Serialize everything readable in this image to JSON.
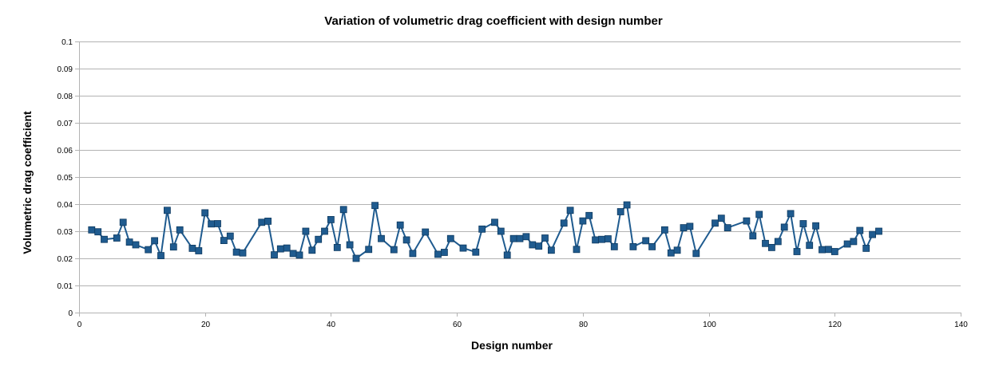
{
  "chart_data": {
    "type": "line",
    "title": "Variation of volumetric drag coefficient with design number",
    "xlabel": "Design number",
    "ylabel": "Volumetric drag coefficient",
    "xlim": [
      0,
      140
    ],
    "ylim": [
      0,
      0.1
    ],
    "x_ticks": [
      0,
      20,
      40,
      60,
      80,
      100,
      120,
      140
    ],
    "y_ticks": [
      0,
      0.01,
      0.02,
      0.03,
      0.04,
      0.05,
      0.06,
      0.07,
      0.08,
      0.09,
      0.1
    ],
    "x_tick_labels": [
      "0",
      "20",
      "40",
      "60",
      "80",
      "100",
      "120",
      "140"
    ],
    "y_tick_labels": [
      "0",
      "0.01",
      "0.02",
      "0.03",
      "0.04",
      "0.05",
      "0.06",
      "0.07",
      "0.08",
      "0.09",
      "0.1"
    ],
    "grid": "horizontal",
    "legend": "none",
    "series": [
      {
        "color": "#1f5b8f",
        "marker": "square",
        "points": [
          [
            2,
            0.0305
          ],
          [
            3,
            0.0298
          ],
          [
            4,
            0.027
          ],
          [
            6,
            0.0275
          ],
          [
            7,
            0.0333
          ],
          [
            8,
            0.026
          ],
          [
            9,
            0.025
          ],
          [
            11,
            0.0232
          ],
          [
            12,
            0.0265
          ],
          [
            13,
            0.021
          ],
          [
            14,
            0.0377
          ],
          [
            15,
            0.0242
          ],
          [
            16,
            0.0305
          ],
          [
            18,
            0.0237
          ],
          [
            19,
            0.0228
          ],
          [
            20,
            0.0368
          ],
          [
            21,
            0.0327
          ],
          [
            22,
            0.0328
          ],
          [
            23,
            0.0266
          ],
          [
            24,
            0.0282
          ],
          [
            25,
            0.0223
          ],
          [
            26,
            0.022
          ],
          [
            29,
            0.0333
          ],
          [
            30,
            0.0337
          ],
          [
            31,
            0.0213
          ],
          [
            32,
            0.0235
          ],
          [
            33,
            0.0238
          ],
          [
            34,
            0.0218
          ],
          [
            35,
            0.0212
          ],
          [
            36,
            0.03
          ],
          [
            37,
            0.023
          ],
          [
            38,
            0.027
          ],
          [
            39,
            0.03
          ],
          [
            40,
            0.0343
          ],
          [
            41,
            0.024
          ],
          [
            42,
            0.038
          ],
          [
            43,
            0.025
          ],
          [
            44,
            0.02
          ],
          [
            46,
            0.0233
          ],
          [
            47,
            0.0395
          ],
          [
            48,
            0.0273
          ],
          [
            50,
            0.0232
          ],
          [
            51,
            0.0323
          ],
          [
            52,
            0.0268
          ],
          [
            53,
            0.0218
          ],
          [
            55,
            0.0297
          ],
          [
            57,
            0.0215
          ],
          [
            58,
            0.0222
          ],
          [
            59,
            0.0273
          ],
          [
            61,
            0.0238
          ],
          [
            63,
            0.0223
          ],
          [
            64,
            0.0308
          ],
          [
            66,
            0.0333
          ],
          [
            67,
            0.03
          ],
          [
            68,
            0.0212
          ],
          [
            69,
            0.0273
          ],
          [
            70,
            0.0273
          ],
          [
            71,
            0.028
          ],
          [
            72,
            0.025
          ],
          [
            73,
            0.0245
          ],
          [
            74,
            0.0275
          ],
          [
            75,
            0.023
          ],
          [
            77,
            0.033
          ],
          [
            78,
            0.0377
          ],
          [
            79,
            0.0233
          ],
          [
            80,
            0.0338
          ],
          [
            81,
            0.0358
          ],
          [
            82,
            0.0268
          ],
          [
            83,
            0.027
          ],
          [
            84,
            0.0272
          ],
          [
            85,
            0.0243
          ],
          [
            86,
            0.0372
          ],
          [
            87,
            0.0397
          ],
          [
            88,
            0.0243
          ],
          [
            90,
            0.0265
          ],
          [
            91,
            0.0243
          ],
          [
            93,
            0.0305
          ],
          [
            94,
            0.022
          ],
          [
            95,
            0.023
          ],
          [
            96,
            0.0313
          ],
          [
            97,
            0.0318
          ],
          [
            98,
            0.0218
          ],
          [
            101,
            0.033
          ],
          [
            102,
            0.0348
          ],
          [
            103,
            0.0313
          ],
          [
            106,
            0.0338
          ],
          [
            107,
            0.0283
          ],
          [
            108,
            0.0362
          ],
          [
            109,
            0.0255
          ],
          [
            110,
            0.024
          ],
          [
            111,
            0.0262
          ],
          [
            112,
            0.0315
          ],
          [
            113,
            0.0365
          ],
          [
            114,
            0.0225
          ],
          [
            115,
            0.0328
          ],
          [
            116,
            0.0248
          ],
          [
            117,
            0.032
          ],
          [
            118,
            0.0232
          ],
          [
            119,
            0.0233
          ],
          [
            120,
            0.0225
          ],
          [
            122,
            0.0253
          ],
          [
            123,
            0.0262
          ],
          [
            124,
            0.0303
          ],
          [
            125,
            0.0237
          ],
          [
            126,
            0.0288
          ],
          [
            127,
            0.03
          ]
        ]
      }
    ]
  }
}
